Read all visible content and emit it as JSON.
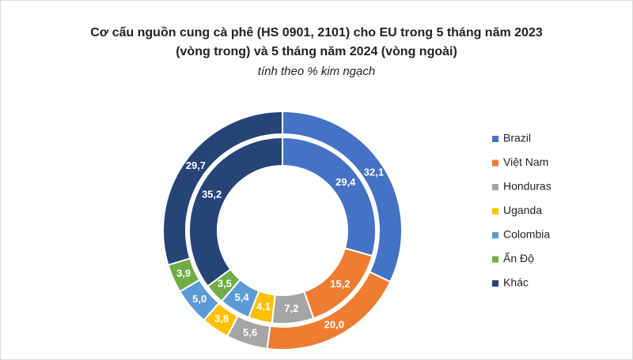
{
  "chart_data": {
    "type": "donut",
    "title": [
      "Cơ cấu nguồn cung cà phê (HS 0901, 2101) cho EU trong 5 tháng năm 2023",
      "(vòng trong) và 5 tháng năm 2024 (vòng ngoài)"
    ],
    "subtitle": "tính theo % kim ngạch",
    "categories": [
      "Brazil",
      "Việt Nam",
      "Honduras",
      "Uganda",
      "Colombia",
      "Ấn Độ",
      "Khác"
    ],
    "colors": [
      "#4472c4",
      "#ed7d31",
      "#a5a5a5",
      "#ffc000",
      "#5b9bd5",
      "#70ad47",
      "#264478"
    ],
    "series": [
      {
        "values": [
          29.4,
          15.2,
          7.2,
          4.1,
          5.4,
          3.5,
          35.2
        ],
        "value_labels": [
          "29,4",
          "15,2",
          "7,2",
          "4,1",
          "5,4",
          "3,5",
          "35,2"
        ]
      },
      {
        "values": [
          32.1,
          20.0,
          5.6,
          3.8,
          5.0,
          3.9,
          29.7
        ],
        "value_labels": [
          "32,1",
          "20,0",
          "5,6",
          "3,8",
          "5,0",
          "3,9",
          "29,7"
        ]
      }
    ],
    "legend": "right"
  }
}
